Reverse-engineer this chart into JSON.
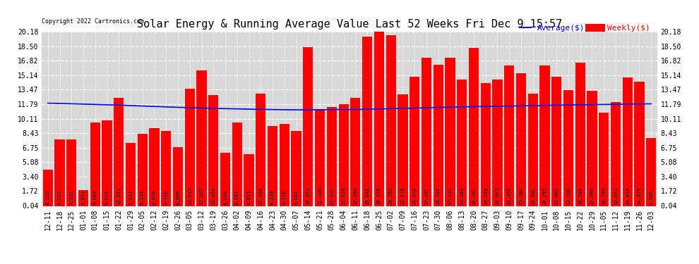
{
  "title": "Solar Energy & Running Average Value Last 52 Weeks Fri Dec 9 15:57",
  "copyright": "Copyright 2022 Cartronics.com",
  "bar_color": "#ff0000",
  "avg_line_color": "#0000ff",
  "background_color": "#ffffff",
  "plot_bg_color": "#d8d8d8",
  "grid_color": "#ffffff",
  "legend_avg": "Average($)",
  "legend_weekly": "Weekly($)",
  "categories": [
    "12-11",
    "12-18",
    "12-25",
    "01-01",
    "01-08",
    "01-15",
    "01-22",
    "01-29",
    "02-05",
    "02-12",
    "02-19",
    "02-26",
    "03-05",
    "03-12",
    "03-19",
    "03-26",
    "04-02",
    "04-09",
    "04-16",
    "04-23",
    "04-30",
    "05-07",
    "05-14",
    "05-21",
    "05-28",
    "06-04",
    "06-11",
    "06-18",
    "06-25",
    "07-02",
    "07-09",
    "07-16",
    "07-23",
    "07-30",
    "08-06",
    "08-13",
    "08-20",
    "08-27",
    "09-03",
    "09-10",
    "09-17",
    "09-24",
    "10-01",
    "10-08",
    "10-15",
    "10-22",
    "10-29",
    "11-05",
    "11-12",
    "11-19",
    "11-26",
    "12-03"
  ],
  "values": [
    4.226,
    7.743,
    7.701,
    1.873,
    9.663,
    9.939,
    12.511,
    7.262,
    8.344,
    8.978,
    8.72,
    6.806,
    13.615,
    15.685,
    12.859,
    6.144,
    9.692,
    6.015,
    12.968,
    9.249,
    9.51,
    8.651,
    18.355,
    11.108,
    11.432,
    11.82,
    12.493,
    19.646,
    20.178,
    19.752,
    12.918,
    14.954,
    17.161,
    16.32,
    17.131,
    14.644,
    18.301,
    14.248,
    14.645,
    16.256,
    15.396,
    13.001,
    16.295,
    15.001,
    13.386,
    16.58,
    13.3,
    10.799,
    12.041,
    14.91,
    14.379,
    7.905
  ],
  "avg_values": [
    11.9,
    11.87,
    11.83,
    11.79,
    11.75,
    11.71,
    11.68,
    11.62,
    11.57,
    11.52,
    11.47,
    11.42,
    11.38,
    11.34,
    11.3,
    11.27,
    11.24,
    11.21,
    11.18,
    11.16,
    11.14,
    11.13,
    11.13,
    11.14,
    11.15,
    11.16,
    11.17,
    11.19,
    11.22,
    11.27,
    11.3,
    11.33,
    11.37,
    11.41,
    11.44,
    11.47,
    11.5,
    11.52,
    11.55,
    11.57,
    11.6,
    11.62,
    11.64,
    11.67,
    11.69,
    11.71,
    11.73,
    11.75,
    11.77,
    11.79,
    11.81,
    11.82
  ],
  "yticks": [
    0.04,
    1.72,
    3.4,
    5.08,
    6.75,
    8.43,
    10.11,
    11.79,
    13.47,
    15.14,
    16.82,
    18.5,
    20.18
  ],
  "ylim": [
    0.0,
    20.18
  ],
  "bar_width": 0.85,
  "title_fontsize": 11,
  "tick_fontsize": 7,
  "annotation_fontsize": 5.0,
  "legend_fontsize": 8
}
